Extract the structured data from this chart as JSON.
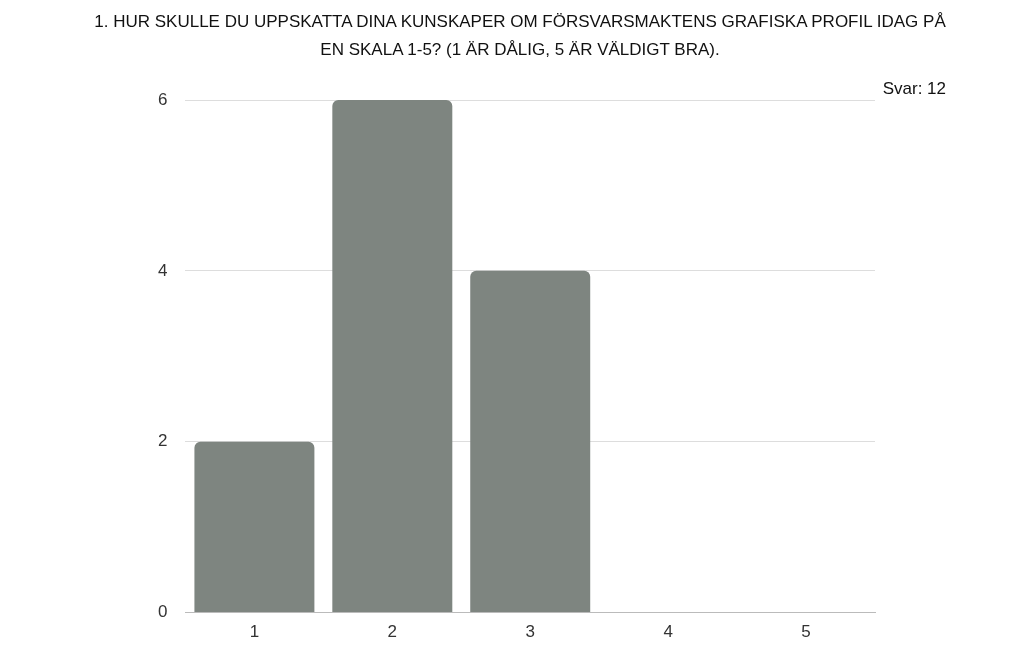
{
  "chart_data": {
    "type": "bar",
    "title": "1.     HUR SKULLE DU UPPSKATTA DINA KUNSKAPER OM FÖRSVARSMAKTENS GRAFISKA PROFIL IDAG PÅ EN SKALA 1-5? (1 ÄR DÅLIG, 5 ÄR VÄLDIGT BRA).",
    "categories": [
      "1",
      "2",
      "3",
      "4",
      "5"
    ],
    "values": [
      2,
      6,
      4,
      0,
      0
    ],
    "color": "#7e8580",
    "ylim": [
      0,
      6
    ],
    "yticks": [
      0,
      2,
      4,
      6
    ],
    "grid": "y",
    "annotations": [
      "Svar: 12"
    ]
  }
}
